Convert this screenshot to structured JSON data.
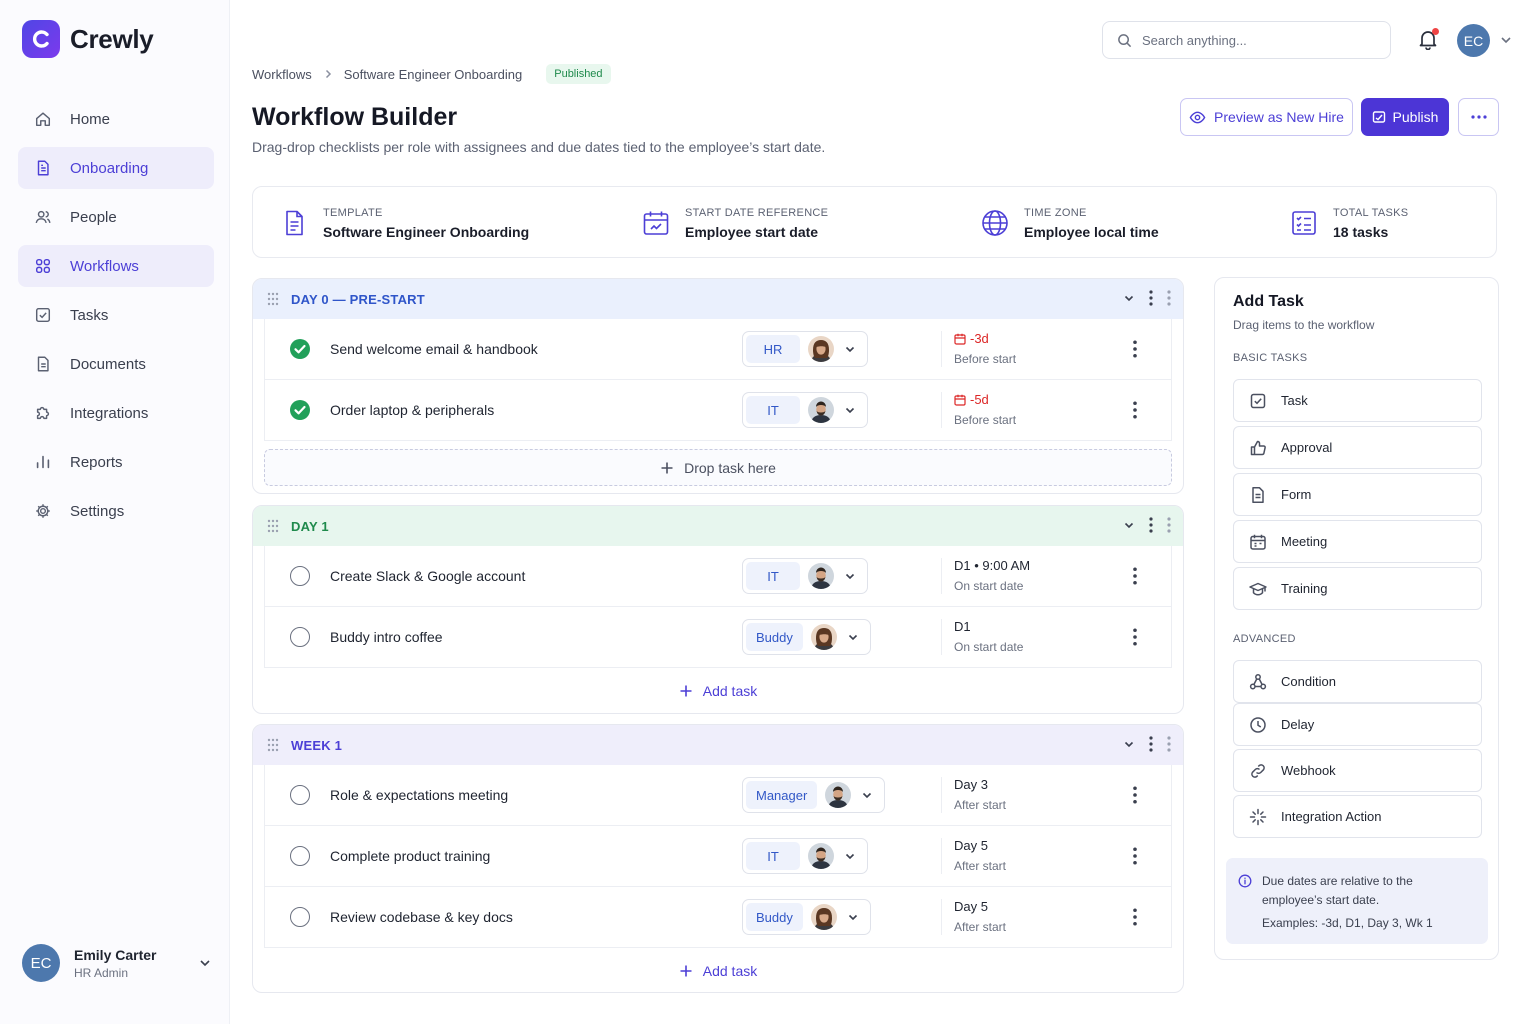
{
  "app": {
    "name": "Crewly"
  },
  "sidebar": {
    "items": [
      {
        "label": "Home",
        "icon": "home-icon"
      },
      {
        "label": "Onboarding",
        "icon": "document-icon"
      },
      {
        "label": "People",
        "icon": "people-icon"
      },
      {
        "label": "Workflows",
        "icon": "workflow-icon"
      },
      {
        "label": "Tasks",
        "icon": "checkbox-icon"
      },
      {
        "label": "Documents",
        "icon": "file-icon"
      },
      {
        "label": "Integrations",
        "icon": "puzzle-icon"
      },
      {
        "label": "Reports",
        "icon": "bar-chart-icon"
      },
      {
        "label": "Settings",
        "icon": "gear-icon"
      }
    ],
    "user": {
      "initials": "EC",
      "name": "Emily Carter",
      "role": "HR Admin"
    }
  },
  "topbar": {
    "search_placeholder": "Search anything...",
    "avatar_initials": "EC"
  },
  "header": {
    "breadcrumb_root": "Workflows",
    "breadcrumb_current": "Software Engineer Onboarding",
    "status_badge": "Published",
    "title": "Workflow Builder",
    "subtitle": "Drag-drop checklists per role with assignees and due dates tied to the employee’s start date.",
    "preview_label": "Preview as New Hire",
    "publish_label": "Publish"
  },
  "info": {
    "template_label": "TEMPLATE",
    "template_value": "Software Engineer Onboarding",
    "start_label": "START DATE REFERENCE",
    "start_value": "Employee start date",
    "tz_label": "TIME ZONE",
    "tz_value": "Employee local time",
    "total_label": "TOTAL TASKS",
    "total_value": "18 tasks"
  },
  "stages": {
    "s0": {
      "title": "DAY 0 — PRE-START",
      "tasks": [
        {
          "name": "Send welcome email & handbook",
          "role": "HR",
          "due": "-3d",
          "due_sub": "Before start",
          "done": true
        },
        {
          "name": "Order laptop & peripherals",
          "role": "IT",
          "due": "-5d",
          "due_sub": "Before start",
          "done": true
        }
      ],
      "drop_label": "Drop task here"
    },
    "s1": {
      "title": "DAY 1",
      "tasks": [
        {
          "name": "Create Slack & Google account",
          "role": "IT",
          "due": "D1 • 9:00 AM",
          "due_sub": "On start date",
          "done": false
        },
        {
          "name": "Buddy intro coffee",
          "role": "Buddy",
          "due": "D1",
          "due_sub": "On start date",
          "done": false
        }
      ],
      "add_label": "Add task"
    },
    "s2": {
      "title": "WEEK 1",
      "tasks": [
        {
          "name": "Role & expectations meeting",
          "role": "Manager",
          "due": "Day 3",
          "due_sub": "After start",
          "done": false
        },
        {
          "name": "Complete product training",
          "role": "IT",
          "due": "Day 5",
          "due_sub": "After start",
          "done": false
        },
        {
          "name": "Review codebase & key docs",
          "role": "Buddy",
          "due": "Day 5",
          "due_sub": "After start",
          "done": false
        }
      ],
      "add_label": "Add task"
    }
  },
  "panel": {
    "title": "Add Task",
    "subtitle": "Drag items to the workflow",
    "basic_label": "BASIC TASKS",
    "basic": [
      "Task",
      "Approval",
      "Form",
      "Meeting",
      "Training"
    ],
    "advanced_label": "ADVANCED",
    "advanced": [
      "Condition",
      "Delay",
      "Webhook",
      "Integration Action"
    ],
    "note": "Due dates are relative to the employee’s start date.",
    "note_examples": "Examples: -3d, D1, Day 3, Wk 1"
  },
  "colors": {
    "accent": "#4c35d6",
    "success": "#22a05a",
    "danger": "#dc2626",
    "day0_header": "#eaf0fd",
    "day1_header": "#e7f6ee",
    "week1_header": "#efeefb"
  }
}
